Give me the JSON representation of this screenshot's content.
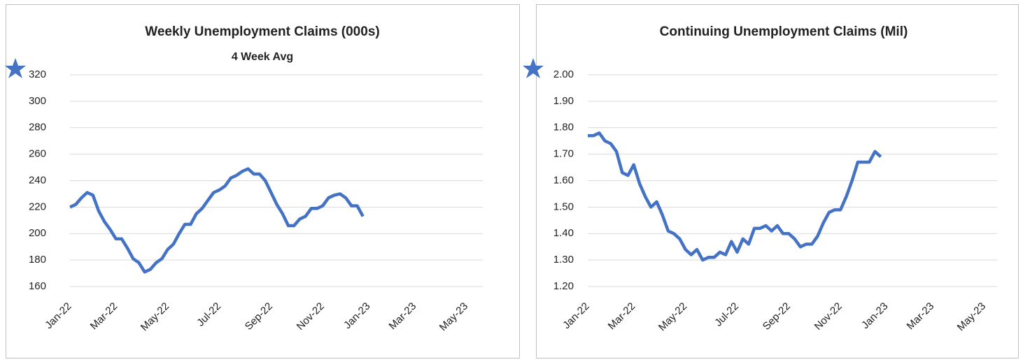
{
  "chart_data": [
    {
      "type": "line",
      "title": "Weekly Unemployment Claims (000s)",
      "subtitle": "4 Week Avg",
      "color": "#4472c4",
      "grid": true,
      "categories": [
        "Jan-22",
        null,
        null,
        null,
        null,
        null,
        null,
        null,
        "Mar-22",
        null,
        null,
        null,
        null,
        null,
        null,
        null,
        null,
        "May-22",
        null,
        null,
        null,
        null,
        null,
        null,
        null,
        null,
        "Jul-22",
        null,
        null,
        null,
        null,
        null,
        null,
        null,
        null,
        "Sep-22",
        null,
        null,
        null,
        null,
        null,
        null,
        null,
        null,
        "Nov-22",
        null,
        null,
        null,
        null,
        null,
        null,
        null,
        "Jan-23",
        null,
        null,
        null,
        null,
        null,
        null,
        null,
        "Mar-23",
        null,
        null,
        null,
        null,
        null,
        null,
        null,
        null,
        "May-23"
      ],
      "values": [
        220,
        222,
        227,
        231,
        229,
        217,
        209,
        203,
        196,
        196,
        189,
        181,
        178,
        171,
        173,
        178,
        181,
        188,
        192,
        200,
        207,
        207,
        215,
        219,
        225,
        231,
        233,
        236,
        242,
        244,
        247,
        249,
        245,
        245,
        240,
        231,
        222,
        215,
        206,
        206,
        211,
        213,
        219,
        219,
        221,
        227,
        229,
        230,
        227,
        221,
        221,
        213,
        null,
        null,
        null,
        null,
        null,
        null,
        null,
        null,
        null,
        null,
        null,
        null,
        null,
        null,
        null,
        null,
        null,
        null
      ],
      "ylim": [
        160,
        320
      ],
      "yticks": [
        160,
        180,
        200,
        220,
        240,
        260,
        280,
        300,
        320
      ]
    },
    {
      "type": "line",
      "title": "Continuing Unemployment Claims (Mil)",
      "color": "#4472c4",
      "grid": true,
      "categories": [
        "Jan-22",
        null,
        null,
        null,
        null,
        null,
        null,
        null,
        "Mar-22",
        null,
        null,
        null,
        null,
        null,
        null,
        null,
        null,
        "May-22",
        null,
        null,
        null,
        null,
        null,
        null,
        null,
        null,
        "Jul-22",
        null,
        null,
        null,
        null,
        null,
        null,
        null,
        null,
        "Sep-22",
        null,
        null,
        null,
        null,
        null,
        null,
        null,
        null,
        "Nov-22",
        null,
        null,
        null,
        null,
        null,
        null,
        null,
        "Jan-23",
        null,
        null,
        null,
        null,
        null,
        null,
        null,
        "Mar-23",
        null,
        null,
        null,
        null,
        null,
        null,
        null,
        null,
        "May-23"
      ],
      "values": [
        1.77,
        1.77,
        1.78,
        1.75,
        1.74,
        1.71,
        1.63,
        1.62,
        1.66,
        1.59,
        1.54,
        1.5,
        1.52,
        1.47,
        1.41,
        1.4,
        1.38,
        1.34,
        1.32,
        1.34,
        1.3,
        1.31,
        1.31,
        1.33,
        1.32,
        1.37,
        1.33,
        1.38,
        1.36,
        1.42,
        1.42,
        1.43,
        1.41,
        1.43,
        1.4,
        1.4,
        1.38,
        1.35,
        1.36,
        1.36,
        1.39,
        1.44,
        1.48,
        1.49,
        1.49,
        1.54,
        1.6,
        1.67,
        1.67,
        1.67,
        1.71,
        1.69,
        null,
        null,
        null,
        null,
        null,
        null,
        null,
        null,
        null,
        null,
        null,
        null,
        null,
        null,
        null,
        null,
        null,
        null
      ],
      "ylim": [
        1.2,
        2.0
      ],
      "yticks": [
        {
          "value": 1.2,
          "label": "1.20"
        },
        {
          "value": 1.3,
          "label": "1.30"
        },
        {
          "value": 1.4,
          "label": "1.40"
        },
        {
          "value": 1.5,
          "label": "1.50"
        },
        {
          "value": 1.6,
          "label": "1.60"
        },
        {
          "value": 1.7,
          "label": "1.70"
        },
        {
          "value": 1.8,
          "label": "1.80"
        },
        {
          "value": 1.9,
          "label": "1.90"
        },
        {
          "value": 2.0,
          "label": "2.00"
        }
      ]
    }
  ]
}
